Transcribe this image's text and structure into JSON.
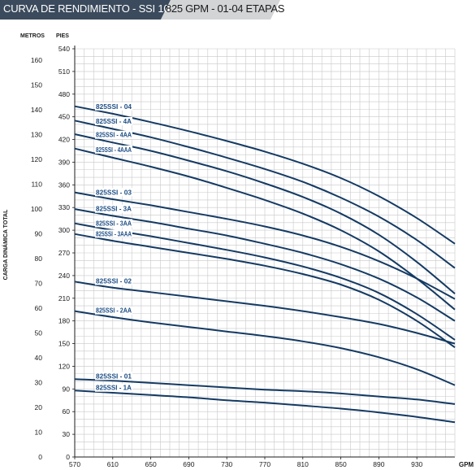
{
  "header": {
    "title": "CURVA DE RENDIMIENTO - SSI 10\"",
    "subtitle": "825 GPM - 01-04 ETAPAS"
  },
  "colors": {
    "curve": "#143a63",
    "grid": "#c8c8c8",
    "axis": "#1b1b1b",
    "label": "#1e4e86",
    "header_dark": "#3b4a5c",
    "header_light": "#d2d4d6"
  },
  "chart_data": {
    "type": "line",
    "xlabel": "GPM",
    "ylabel": "CARGA DINÁMICA TOTAL",
    "y_left_label": "METROS",
    "y_right_label": "PIES",
    "x_ticks": [
      "570",
      "610",
      "650",
      "690",
      "730",
      "770",
      "810",
      "850",
      "890",
      "930"
    ],
    "y_metros_ticks": [
      "0",
      "10",
      "20",
      "30",
      "40",
      "50",
      "60",
      "70",
      "80",
      "90",
      "100",
      "110",
      "120",
      "130",
      "140",
      "150",
      "160"
    ],
    "y_pies_ticks": [
      "0",
      "30",
      "60",
      "90",
      "120",
      "150",
      "180",
      "210",
      "240",
      "270",
      "300",
      "330",
      "360",
      "390",
      "420",
      "450",
      "480",
      "510",
      "540"
    ],
    "xlim": [
      570,
      970
    ],
    "ylim_pies": [
      0,
      540
    ],
    "grid": true,
    "x": [
      570,
      610,
      650,
      690,
      730,
      770,
      810,
      850,
      890,
      930,
      970
    ],
    "series": [
      {
        "name": "825SSI - 04",
        "values": [
          464,
          454,
          443,
          431,
          418,
          404,
          388,
          369,
          345,
          316,
          282
        ]
      },
      {
        "name": "825SSI - 4A",
        "values": [
          445,
          434,
          423,
          410,
          396,
          381,
          364,
          343,
          318,
          287,
          250
        ]
      },
      {
        "name": "825SSI - 4AA",
        "values": [
          427,
          416,
          405,
          392,
          378,
          362,
          344,
          322,
          294,
          258,
          216
        ]
      },
      {
        "name": "825SSI - 4AAA",
        "values": [
          408,
          396,
          384,
          371,
          356,
          340,
          322,
          300,
          272,
          236,
          195
        ]
      },
      {
        "name": "825SSI - 03",
        "values": [
          350,
          341,
          333,
          324,
          315,
          305,
          293,
          278,
          259,
          236,
          209
        ]
      },
      {
        "name": "825SSI - 3A",
        "values": [
          328,
          319,
          311,
          302,
          293,
          282,
          270,
          255,
          236,
          211,
          180
        ]
      },
      {
        "name": "825SSI - 3AA",
        "values": [
          309,
          300,
          292,
          283,
          274,
          264,
          252,
          237,
          217,
          189,
          155
        ]
      },
      {
        "name": "825SSI - 3AAA",
        "values": [
          295,
          286,
          278,
          270,
          262,
          253,
          242,
          228,
          208,
          180,
          145
        ]
      },
      {
        "name": "825SSI - 02",
        "values": [
          232,
          224,
          218,
          212,
          206,
          200,
          193,
          185,
          176,
          164,
          150
        ]
      },
      {
        "name": "825SSI - 2AA",
        "values": [
          193,
          185,
          178,
          172,
          166,
          160,
          153,
          144,
          132,
          116,
          95
        ]
      },
      {
        "name": "825SSI - 01",
        "values": [
          103,
          101,
          98,
          95,
          92,
          89,
          87,
          84,
          80,
          76,
          70
        ]
      },
      {
        "name": "825SSI - 1A",
        "values": [
          88,
          85,
          82,
          79,
          75,
          72,
          68,
          64,
          59,
          53,
          46
        ]
      }
    ]
  }
}
